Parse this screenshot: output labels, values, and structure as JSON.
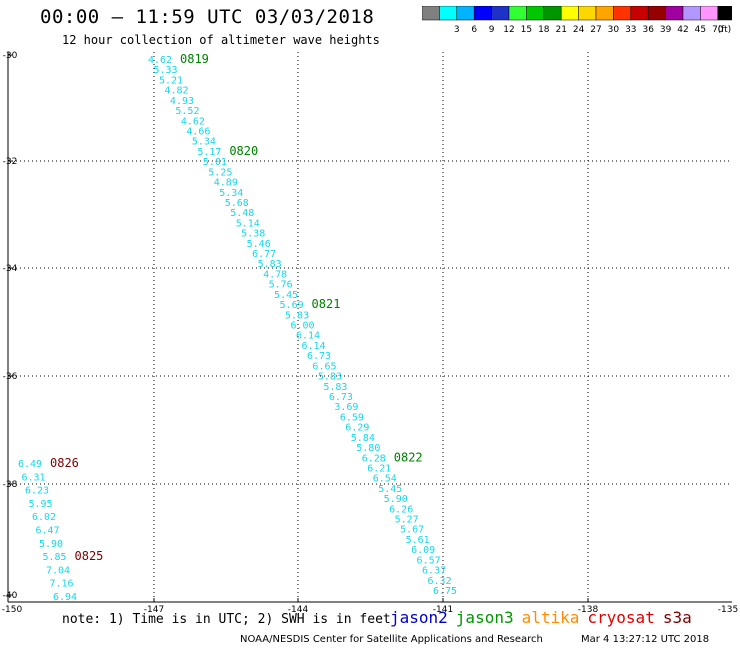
{
  "header": {
    "title": "00:00 – 11:59 UTC 03/03/2018",
    "subtitle": "12 hour collection of altimeter wave heights"
  },
  "colorbar": {
    "unit": "(ft)",
    "swatches": [
      {
        "color": "#808080",
        "label": ""
      },
      {
        "color": "#00ffff",
        "label": "3"
      },
      {
        "color": "#00b4ff",
        "label": "6"
      },
      {
        "color": "#0000ff",
        "label": "9"
      },
      {
        "color": "#1e32c8",
        "label": "12"
      },
      {
        "color": "#32ff32",
        "label": "15"
      },
      {
        "color": "#00c800",
        "label": "18"
      },
      {
        "color": "#009600",
        "label": "21"
      },
      {
        "color": "#ffff00",
        "label": "24"
      },
      {
        "color": "#ffd700",
        "label": "27"
      },
      {
        "color": "#ffa500",
        "label": "30"
      },
      {
        "color": "#ff3200",
        "label": "33"
      },
      {
        "color": "#c80000",
        "label": "36"
      },
      {
        "color": "#960000",
        "label": "39"
      },
      {
        "color": "#a000a0",
        "label": "42"
      },
      {
        "color": "#b496ff",
        "label": "45"
      },
      {
        "color": "#ff96ff",
        "label": "70"
      },
      {
        "color": "#000000",
        "label": ""
      }
    ]
  },
  "axes": {
    "lat_labels": [
      "-30",
      "-32",
      "-34",
      "-36",
      "-38",
      "-40"
    ],
    "lon_labels": [
      "-150",
      "-147",
      "-144",
      "-141",
      "-138",
      "-135"
    ]
  },
  "tracks": [
    {
      "values": [
        "4.62",
        "5.33",
        "5.21",
        "4.82",
        "4.93",
        "5.52",
        "4.62",
        "4.66",
        "5.34",
        "5.17",
        "5.01",
        "5.25",
        "4.89",
        "5.34",
        "5.68",
        "5.48",
        "5.14",
        "5.38",
        "5.46",
        "6.77",
        "5.83",
        "4.78",
        "5.76",
        "5.45",
        "5.69",
        "5.83",
        "6.00",
        "6.14",
        "6.14",
        "6.73",
        "6.65",
        "5.83",
        "5.83",
        "6.73",
        "3.69",
        "6.59",
        "6.29",
        "5.84",
        "5.80",
        "6.28",
        "6.21",
        "6.54",
        "5.45",
        "5.90",
        "6.26",
        "5.27",
        "5.67",
        "5.61",
        "6.09",
        "6.57",
        "6.37",
        "6.32",
        "6.75"
      ],
      "time_labels": [
        {
          "text": "0819",
          "color": "#008000",
          "index": 0
        },
        {
          "text": "0820",
          "color": "#008000",
          "index": 9
        },
        {
          "text": "0821",
          "color": "#008000",
          "index": 24
        },
        {
          "text": "0822",
          "color": "#008000",
          "index": 39
        }
      ]
    },
    {
      "values": [
        "6.49",
        "6.31",
        "6.23",
        "5.95",
        "6.02",
        "6.47",
        "5.90",
        "5.85",
        "7.04",
        "7.16",
        "6.94"
      ],
      "time_labels": [
        {
          "text": "0826",
          "color": "#800000",
          "index": 0
        },
        {
          "text": "0825",
          "color": "#800000",
          "index": 7
        }
      ]
    }
  ],
  "footer": {
    "note": "note: 1) Time is in UTC; 2) SWH is in feet",
    "satellites": [
      {
        "name": "jason2",
        "color": "#0000cc"
      },
      {
        "name": "jason3",
        "color": "#009600"
      },
      {
        "name": "altika",
        "color": "#ff8c00"
      },
      {
        "name": "cryosat",
        "color": "#e00000"
      },
      {
        "name": "s3a",
        "color": "#800000"
      }
    ],
    "credit": "NOAA/NESDIS Center for Satellite Applications and Research",
    "timestamp": "Mar  4 13:27:12 UTC 2018"
  }
}
